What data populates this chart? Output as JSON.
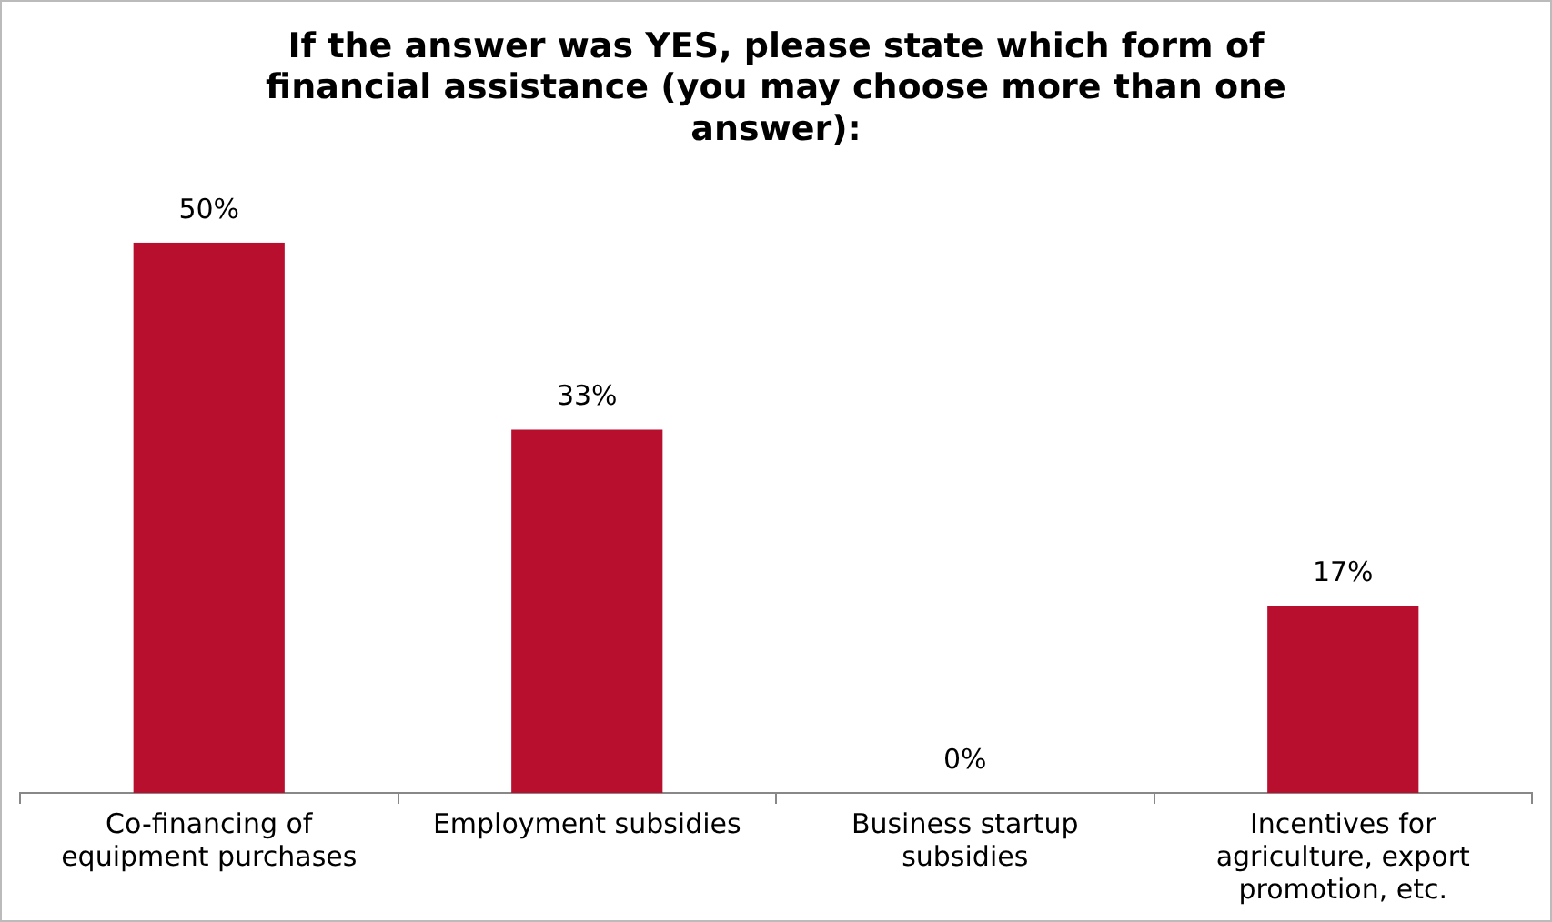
{
  "chart_data": {
    "type": "bar",
    "title": "If the answer was YES, please state which form of financial assistance (you may choose more than one answer):",
    "categories": [
      "Co-financing of equipment purchases",
      "Employment subsidies",
      "Business startup subsidies",
      "Incentives for agriculture, export promotion, etc."
    ],
    "values": [
      50,
      33,
      0,
      17
    ],
    "value_labels": [
      "50%",
      "33%",
      "0%",
      "17%"
    ],
    "color": "#b80f2f",
    "grid": false,
    "legend": false
  }
}
